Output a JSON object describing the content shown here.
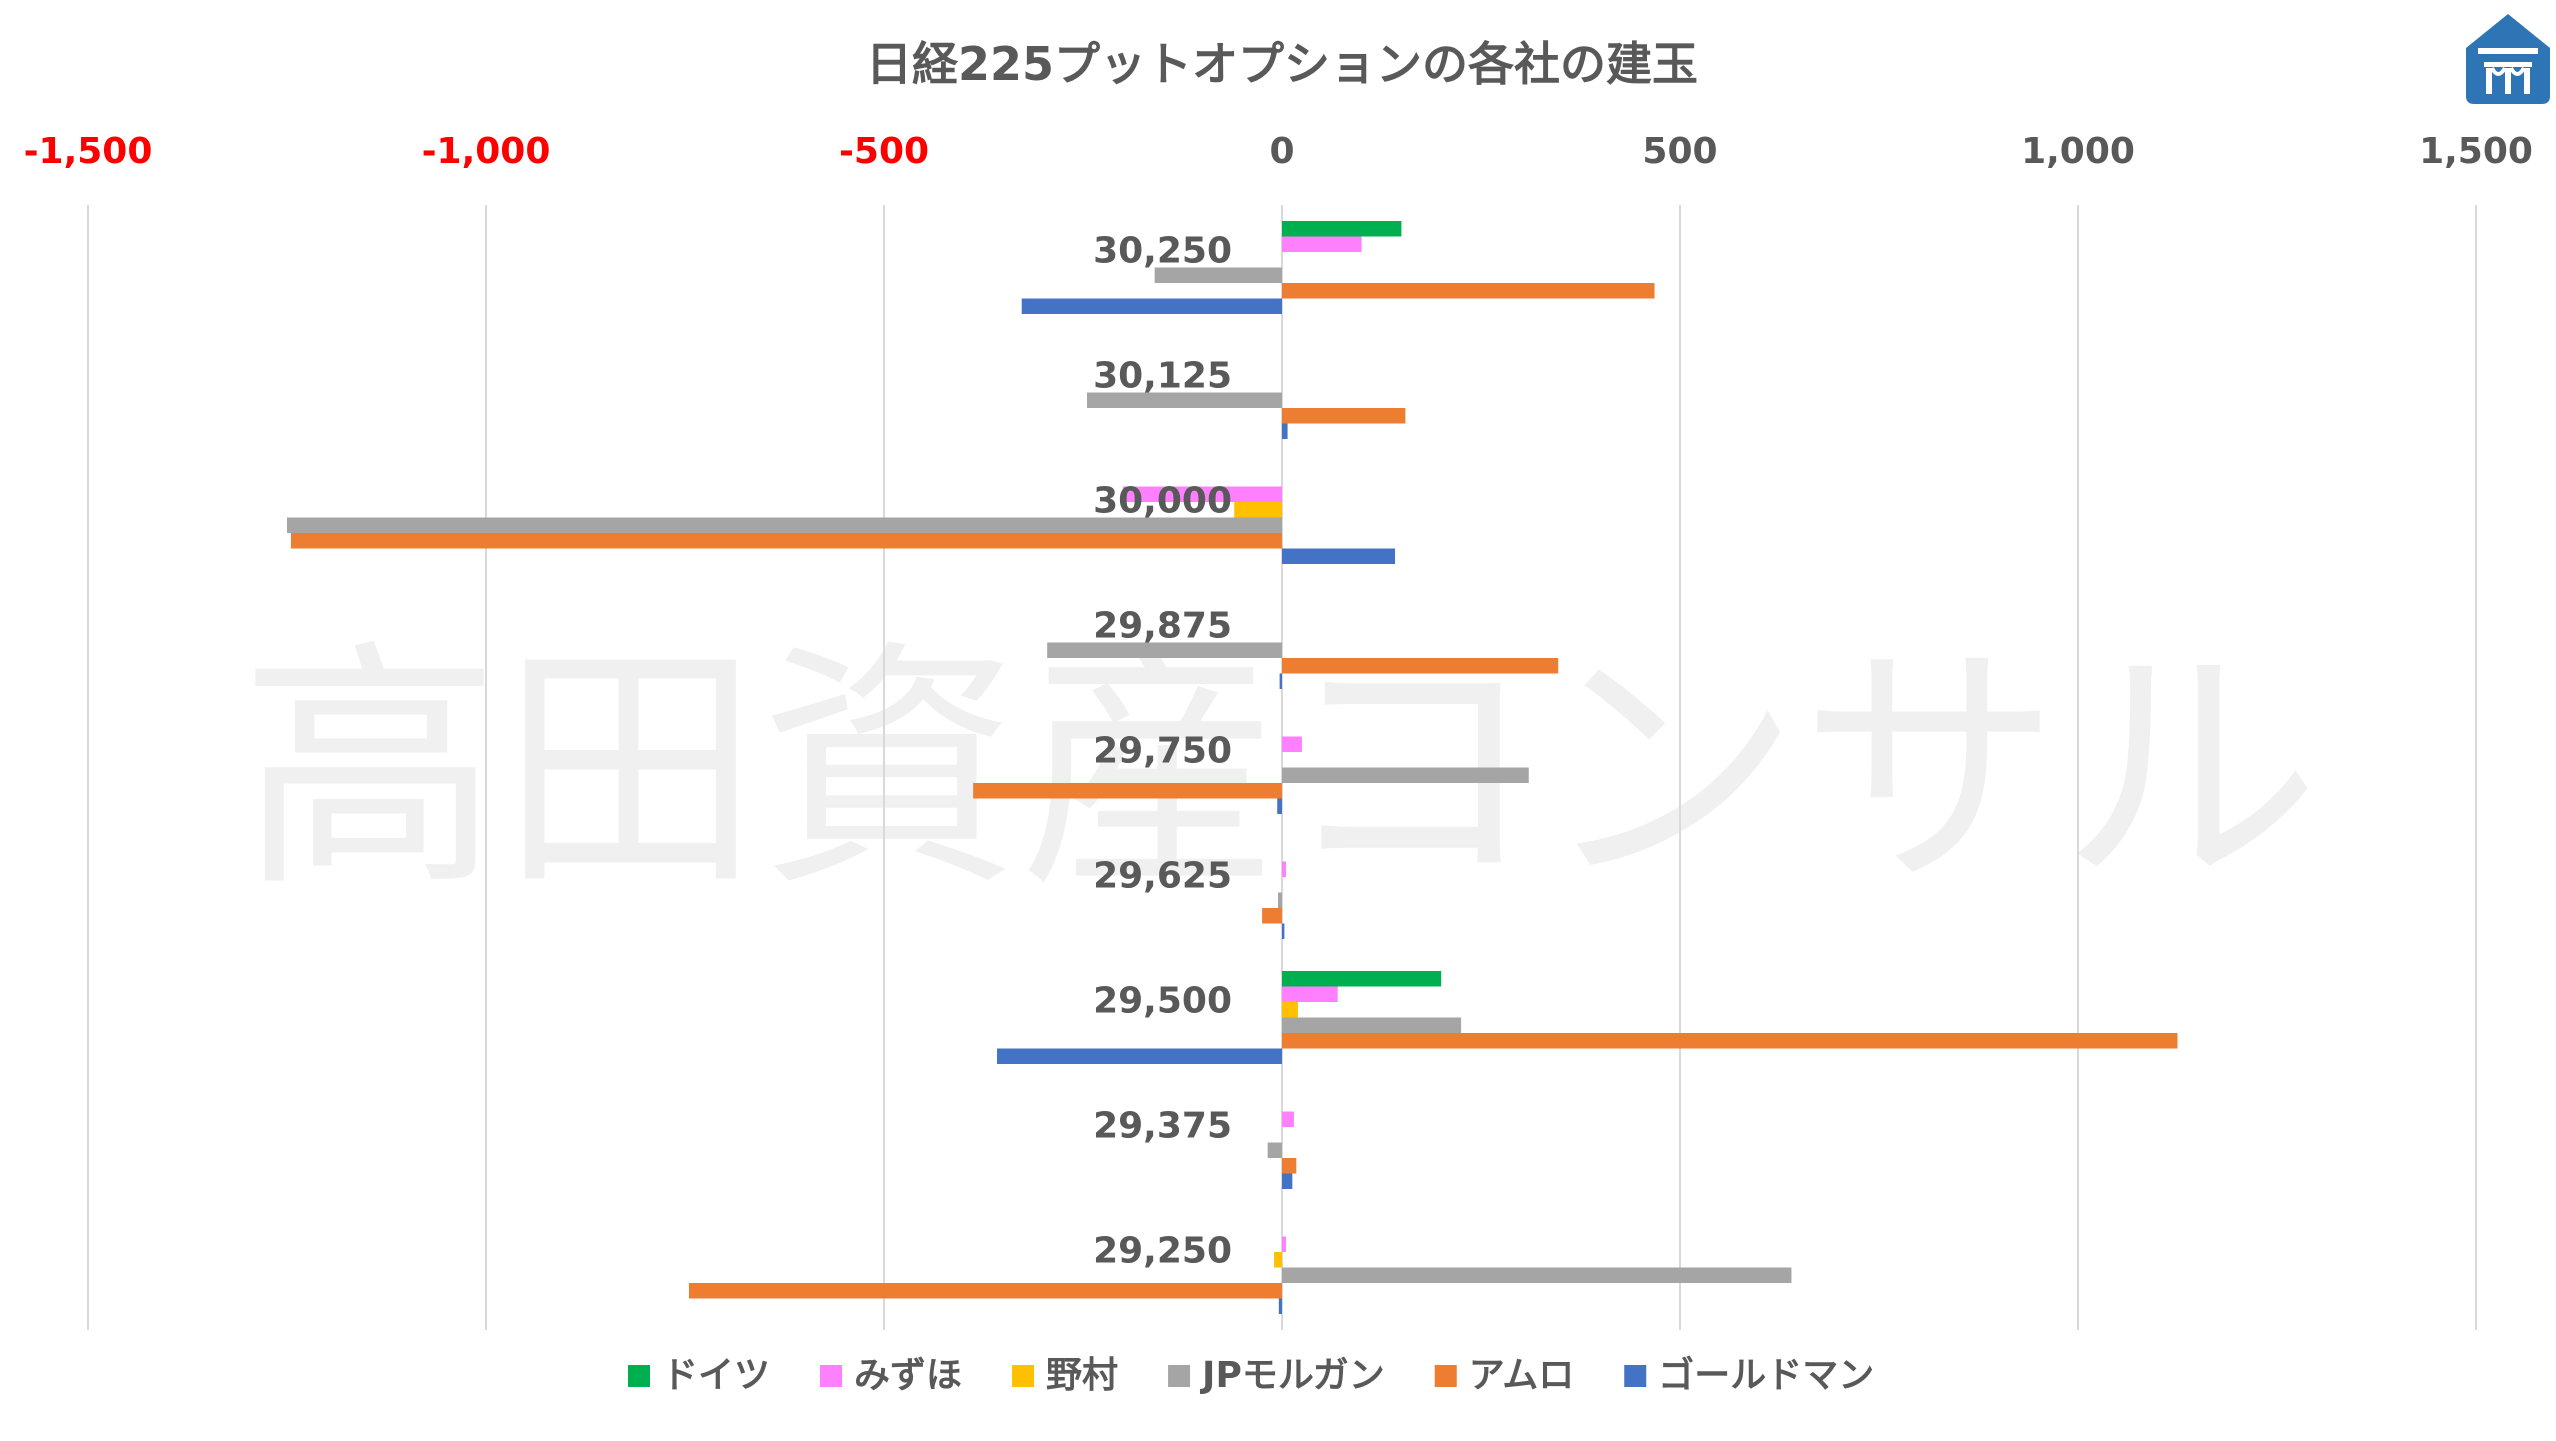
{
  "chart_data": {
    "type": "bar",
    "orientation": "horizontal",
    "title": "日経225プットオプションの各社の建玉",
    "watermark": "高田資産コンサル",
    "xlim": [
      -1500,
      1500
    ],
    "x_ticks": [
      -1500,
      -1000,
      -500,
      0,
      500,
      1000,
      1500
    ],
    "x_tick_labels": [
      "-1,500",
      "-1,000",
      "-500",
      "0",
      "500",
      "1,000",
      "1,500"
    ],
    "negative_tick_color": "#ff0000",
    "positive_tick_color": "#595959",
    "gridlines": true,
    "legend_position": "bottom",
    "categories": [
      "30,250",
      "30,125",
      "30,000",
      "29,875",
      "29,750",
      "29,625",
      "29,500",
      "29,375",
      "29,250"
    ],
    "series": [
      {
        "name": "ドイツ",
        "color": "#00b050",
        "values": [
          150,
          0,
          0,
          0,
          0,
          0,
          200,
          0,
          0
        ]
      },
      {
        "name": "みずほ",
        "color": "#ff80ff",
        "values": [
          100,
          0,
          -200,
          0,
          25,
          5,
          70,
          15,
          5
        ]
      },
      {
        "name": "野村",
        "color": "#ffc000",
        "values": [
          0,
          0,
          -60,
          0,
          0,
          0,
          20,
          0,
          -10
        ]
      },
      {
        "name": "JPモルガン",
        "color": "#a5a5a5",
        "values": [
          -160,
          -245,
          -1250,
          -295,
          310,
          -5,
          225,
          -18,
          640
        ]
      },
      {
        "name": "アムロ",
        "color": "#ed7d31",
        "values": [
          468,
          155,
          -1245,
          347,
          -388,
          -25,
          1125,
          18,
          -745
        ]
      },
      {
        "name": "ゴールドマン",
        "color": "#4472c4",
        "values": [
          -327,
          7,
          142,
          -3,
          -6,
          3,
          -358,
          13,
          -4
        ]
      }
    ]
  },
  "logo": {
    "icon": "building-logo-icon",
    "color": "#2e75b6"
  }
}
